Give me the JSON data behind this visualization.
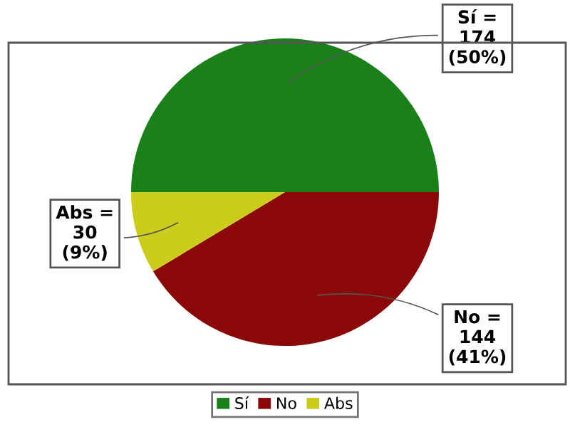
{
  "chart_data": {
    "type": "pie",
    "categories": [
      "Sí",
      "No",
      "Abs"
    ],
    "values": [
      174,
      144,
      30
    ],
    "colors": [
      "#1a801a",
      "#8b0808",
      "#cccc1a"
    ],
    "value_labels": [
      "Sí =\n174\n(50%)",
      "No =\n144\n(41%)",
      "Abs =\n30\n(9%)"
    ],
    "legend": "bottom"
  }
}
